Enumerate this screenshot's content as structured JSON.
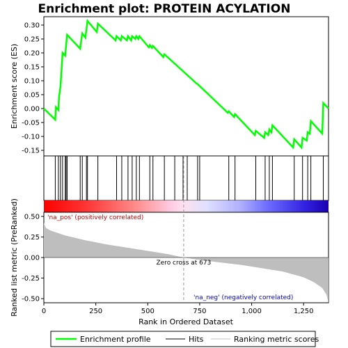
{
  "chart_data": {
    "type": "line",
    "title": "Enrichment plot: PROTEIN ACYLATION",
    "top_panel": {
      "ylabel": "Enrichment score (ES)",
      "ylim": [
        -0.17,
        0.33
      ],
      "yticks": [
        0.3,
        0.25,
        0.2,
        0.15,
        0.1,
        0.05,
        0.0,
        -0.05,
        -0.1,
        -0.15
      ],
      "ytick_labels": [
        "0.30",
        "0.25",
        "0.20",
        "0.15",
        "0.10",
        "0.05",
        "0.00",
        "-0.05",
        "-0.10",
        "-0.15"
      ],
      "series": [
        {
          "name": "Enrichment profile",
          "color": "#00ff00",
          "x": [
            0,
            55,
            58,
            70,
            73,
            80,
            84,
            90,
            103,
            107,
            112,
            175,
            180,
            185,
            200,
            205,
            210,
            255,
            260,
            345,
            350,
            370,
            375,
            400,
            405,
            420,
            425,
            440,
            445,
            455,
            460,
            505,
            510,
            520,
            525,
            575,
            580,
            735,
            740,
            885,
            890,
            915,
            920,
            1015,
            1020,
            1060,
            1065,
            1080,
            1085,
            1095,
            1100,
            1200,
            1205,
            1240,
            1245,
            1265,
            1270,
            1280,
            1285,
            1340,
            1345,
            1370
          ],
          "y": [
            0.0,
            -0.04,
            0.005,
            -0.005,
            0.04,
            0.08,
            0.125,
            0.2,
            0.19,
            0.225,
            0.265,
            0.215,
            0.245,
            0.27,
            0.255,
            0.285,
            0.315,
            0.275,
            0.305,
            0.245,
            0.26,
            0.245,
            0.26,
            0.245,
            0.26,
            0.245,
            0.26,
            0.25,
            0.26,
            0.25,
            0.26,
            0.22,
            0.228,
            0.218,
            0.225,
            0.185,
            0.195,
            0.09,
            0.088,
            -0.015,
            -0.01,
            -0.03,
            -0.02,
            -0.095,
            -0.08,
            -0.105,
            -0.085,
            -0.095,
            -0.075,
            -0.085,
            -0.06,
            -0.14,
            -0.11,
            -0.14,
            -0.105,
            -0.115,
            -0.085,
            -0.09,
            -0.045,
            -0.09,
            0.02,
            0.0
          ]
        }
      ]
    },
    "hits": {
      "name": "Hits",
      "ranks": [
        55,
        70,
        80,
        90,
        103,
        107,
        112,
        175,
        185,
        205,
        210,
        260,
        350,
        375,
        405,
        425,
        445,
        460,
        510,
        525,
        580,
        630,
        670,
        690,
        740,
        750,
        890,
        920,
        1020,
        1065,
        1085,
        1100,
        1205,
        1245,
        1270,
        1285,
        1345
      ]
    },
    "bottom_panel": {
      "name": "Ranking metric scores",
      "ylabel": "Ranked list metric (PreRanked)",
      "xlabel": "Rank in Ordered Dataset",
      "ylim": [
        -0.55,
        0.55
      ],
      "yticks": [
        0.5,
        0.25,
        0.0,
        -0.25,
        -0.5
      ],
      "ytick_labels": [
        "0.50",
        "0.25",
        "0.00",
        "-0.25",
        "-0.50"
      ],
      "xlim": [
        0,
        1370
      ],
      "xticks": [
        0,
        250,
        500,
        750,
        1000,
        1250
      ],
      "xtick_labels": [
        "0",
        "250",
        "500",
        "750",
        "1,000",
        "1,250"
      ],
      "metric_x": [
        0,
        10,
        30,
        100,
        200,
        300,
        400,
        500,
        600,
        673,
        750,
        850,
        950,
        1050,
        1150,
        1250,
        1300,
        1340,
        1360,
        1370
      ],
      "metric_y": [
        0.42,
        0.36,
        0.33,
        0.27,
        0.21,
        0.16,
        0.12,
        0.08,
        0.04,
        0.0,
        -0.03,
        -0.06,
        -0.09,
        -0.13,
        -0.17,
        -0.24,
        -0.3,
        -0.37,
        -0.45,
        -0.55
      ],
      "zero_cross_rank": 673,
      "zero_cross_label": "Zero cross at 673",
      "pos_label": "'na_pos' (positively correlated)",
      "neg_label": "'na_neg' (negatively correlated)"
    },
    "legend": [
      {
        "name": "Enrichment profile",
        "color": "#00ff00"
      },
      {
        "name": "Hits",
        "color": "#000000"
      },
      {
        "name": "Ranking metric scores",
        "color": "#c0c0c0"
      }
    ],
    "colors": {
      "profile": "#00ff00",
      "metric_fill": "#bebebe",
      "pos_text": "#cc0000",
      "neg_text": "#0000cc"
    }
  }
}
